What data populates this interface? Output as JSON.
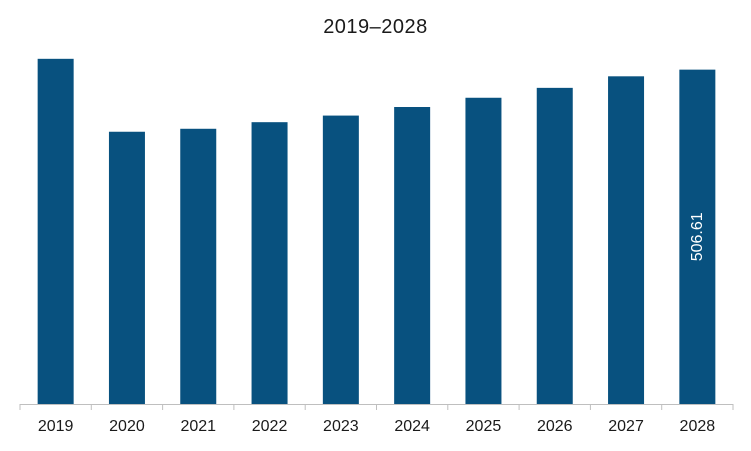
{
  "chart_data": {
    "type": "bar",
    "title": "2019–2028",
    "xlabel": "",
    "ylabel": "",
    "categories": [
      "2019",
      "2020",
      "2021",
      "2022",
      "2023",
      "2024",
      "2025",
      "2026",
      "2027",
      "2028"
    ],
    "values": [
      523.0,
      412.5,
      417.0,
      427.0,
      437.0,
      450.0,
      464.0,
      479.0,
      496.5,
      506.61
    ],
    "ylim": [
      0,
      600
    ],
    "data_labels": [
      {
        "index": 9,
        "text": "506.61"
      }
    ],
    "grid": false,
    "legend": "none",
    "bar_color": "#08517f",
    "axis_color": "#bfbfbf"
  }
}
